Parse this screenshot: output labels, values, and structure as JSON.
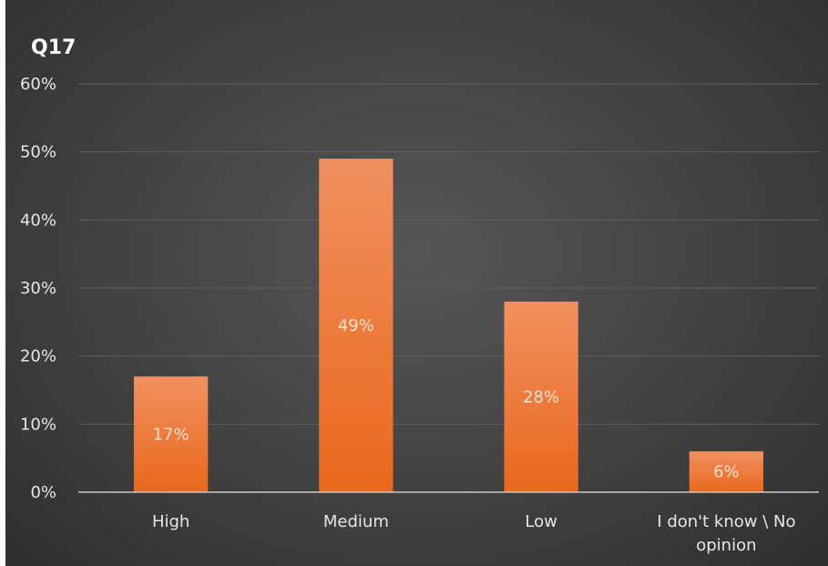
{
  "chart_data": {
    "type": "bar",
    "title": "Q17",
    "categories": [
      "High",
      "Medium",
      "Low",
      "I don't know \\ No opinion"
    ],
    "values": [
      17,
      49,
      28,
      6
    ],
    "data_labels": [
      "17%",
      "49%",
      "28%",
      "6%"
    ],
    "ylim": [
      0,
      60
    ],
    "yticks": [
      0,
      10,
      20,
      30,
      40,
      50,
      60
    ],
    "ytick_labels": [
      "0%",
      "10%",
      "20%",
      "30%",
      "40%",
      "50%",
      "60%"
    ],
    "xlabel": "",
    "ylabel": "",
    "grid": true,
    "legend": "none",
    "colors": {
      "bar_top": "#f19060",
      "bar_bottom": "#e8681c",
      "grid": "#5e5e5e",
      "axis": "#c8c8c8"
    }
  }
}
